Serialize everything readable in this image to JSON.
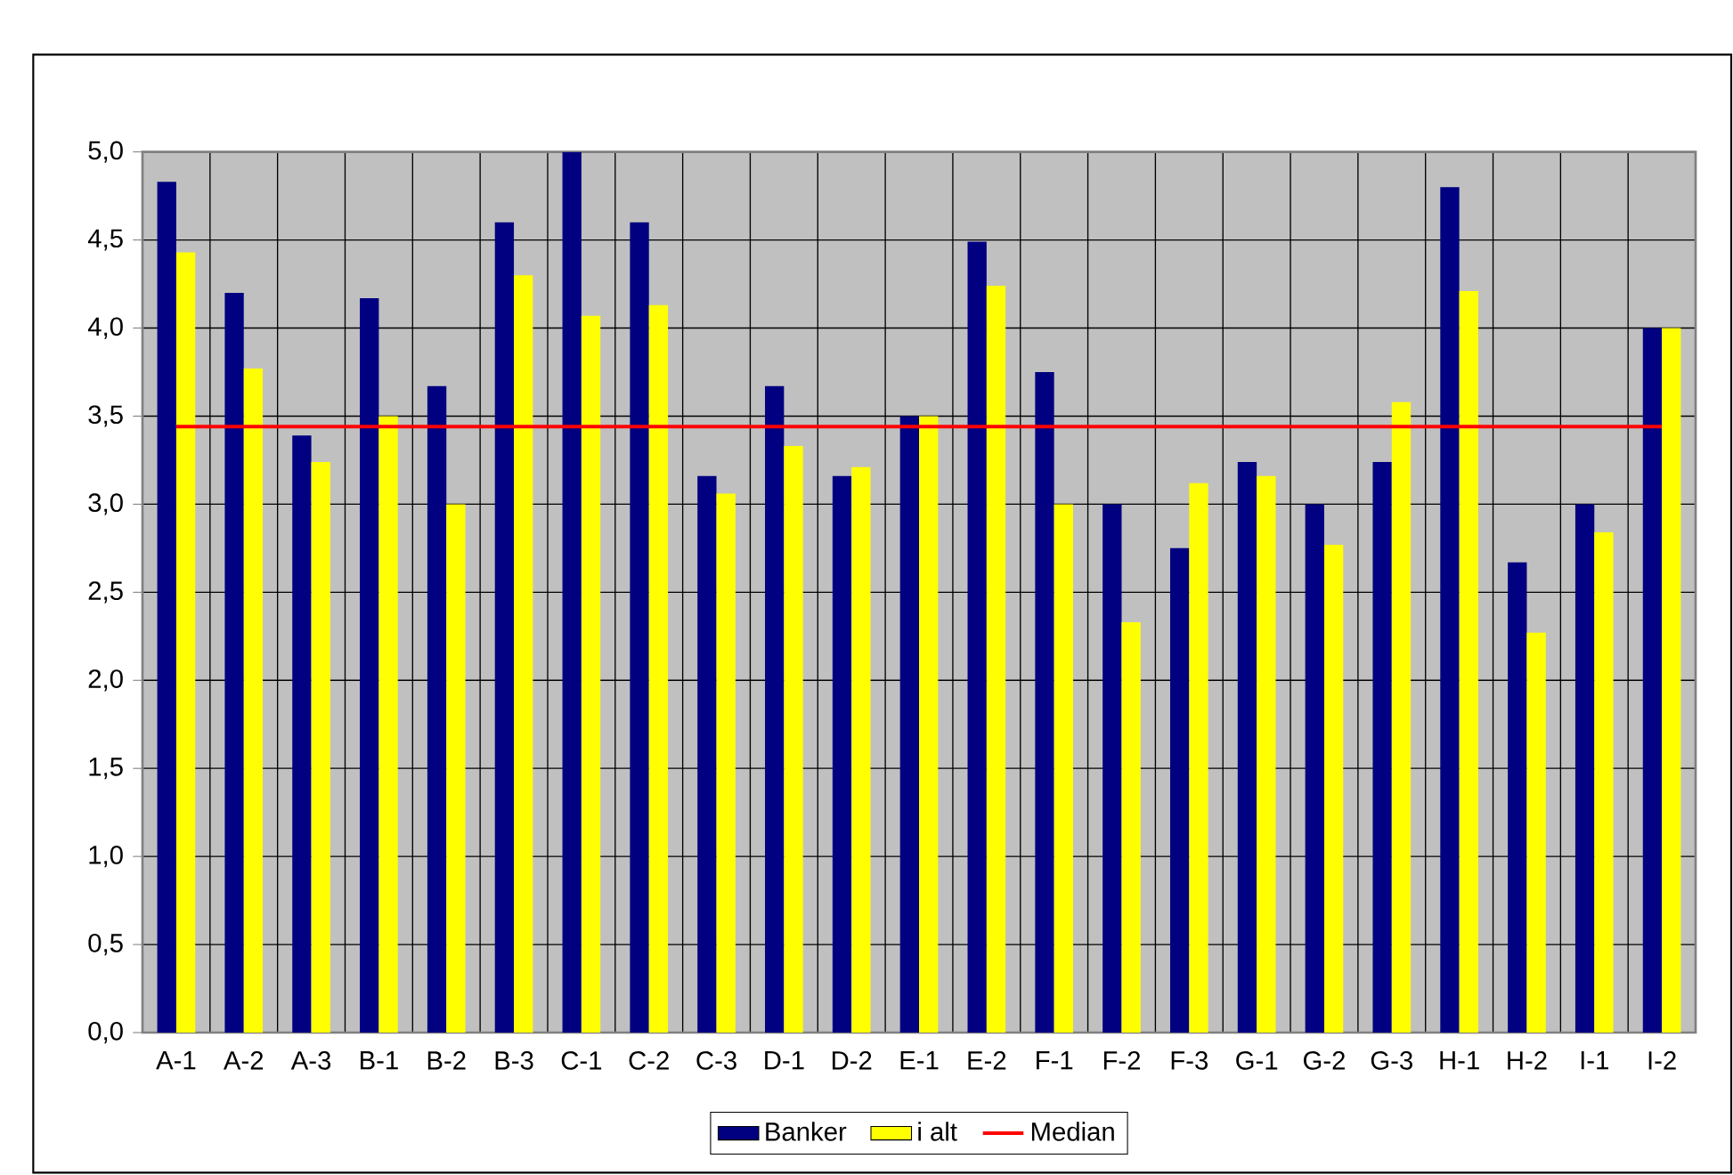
{
  "chart_data": {
    "type": "bar",
    "categories": [
      "A-1",
      "A-2",
      "A-3",
      "B-1",
      "B-2",
      "B-3",
      "C-1",
      "C-2",
      "C-3",
      "D-1",
      "D-2",
      "E-1",
      "E-2",
      "F-1",
      "F-2",
      "F-3",
      "G-1",
      "G-2",
      "G-3",
      "H-1",
      "H-2",
      "I-1",
      "I-2"
    ],
    "series": [
      {
        "name": "Banker",
        "color": "#000080",
        "values": [
          4.83,
          4.2,
          3.39,
          4.17,
          3.67,
          4.6,
          5.0,
          4.6,
          3.16,
          3.67,
          3.16,
          3.5,
          4.49,
          3.75,
          3.0,
          2.75,
          3.24,
          3.0,
          3.24,
          4.8,
          2.67,
          3.0,
          4.0
        ]
      },
      {
        "name": "i alt",
        "color": "#ffff00",
        "values": [
          4.43,
          3.77,
          3.24,
          3.5,
          3.0,
          4.3,
          4.07,
          4.13,
          3.06,
          3.33,
          3.21,
          3.5,
          4.24,
          3.0,
          2.33,
          3.12,
          3.16,
          2.77,
          3.58,
          4.21,
          2.27,
          2.84,
          4.0
        ]
      },
      {
        "name": "Median",
        "type": "line",
        "color": "#ff0000",
        "values": [
          3.44,
          3.44,
          3.44,
          3.44,
          3.44,
          3.44,
          3.44,
          3.44,
          3.44,
          3.44,
          3.44,
          3.44,
          3.44,
          3.44,
          3.44,
          3.44,
          3.44,
          3.44,
          3.44,
          3.44,
          3.44,
          3.44,
          3.44
        ]
      }
    ],
    "ylim": [
      0,
      5
    ],
    "yticks": [
      {
        "value": 0,
        "label": "0,0"
      },
      {
        "value": 0.5,
        "label": "0,5"
      },
      {
        "value": 1,
        "label": "1,0"
      },
      {
        "value": 1.5,
        "label": "1,5"
      },
      {
        "value": 2,
        "label": "2,0"
      },
      {
        "value": 2.5,
        "label": "2,5"
      },
      {
        "value": 3,
        "label": "3,0"
      },
      {
        "value": 3.5,
        "label": "3,5"
      },
      {
        "value": 4,
        "label": "4,0"
      },
      {
        "value": 4.5,
        "label": "4,5"
      },
      {
        "value": 5,
        "label": "5,0"
      }
    ],
    "grid": true,
    "legend": "bottom"
  }
}
